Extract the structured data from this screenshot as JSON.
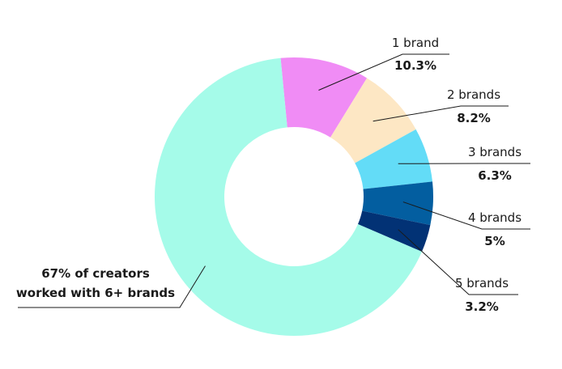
{
  "chart_data": {
    "type": "pie",
    "donut": true,
    "categories": [
      "1 brand",
      "2 brands",
      "3 brands",
      "4 brands",
      "5 brands",
      "6+ brands"
    ],
    "values": [
      10.3,
      8.2,
      6.3,
      5,
      3.2,
      67
    ],
    "value_labels": [
      "10.3%",
      "8.2%",
      "6.3%",
      "5%",
      "3.2%",
      "67%"
    ],
    "colors": [
      "#f08cf5",
      "#fde7c4",
      "#63dcf7",
      "#035ea0",
      "#023275",
      "#a5fbe9"
    ],
    "annotation": {
      "line1": "67% of creators",
      "line2": "worked with 6+ brands"
    },
    "legend": "none",
    "grid": false
  }
}
